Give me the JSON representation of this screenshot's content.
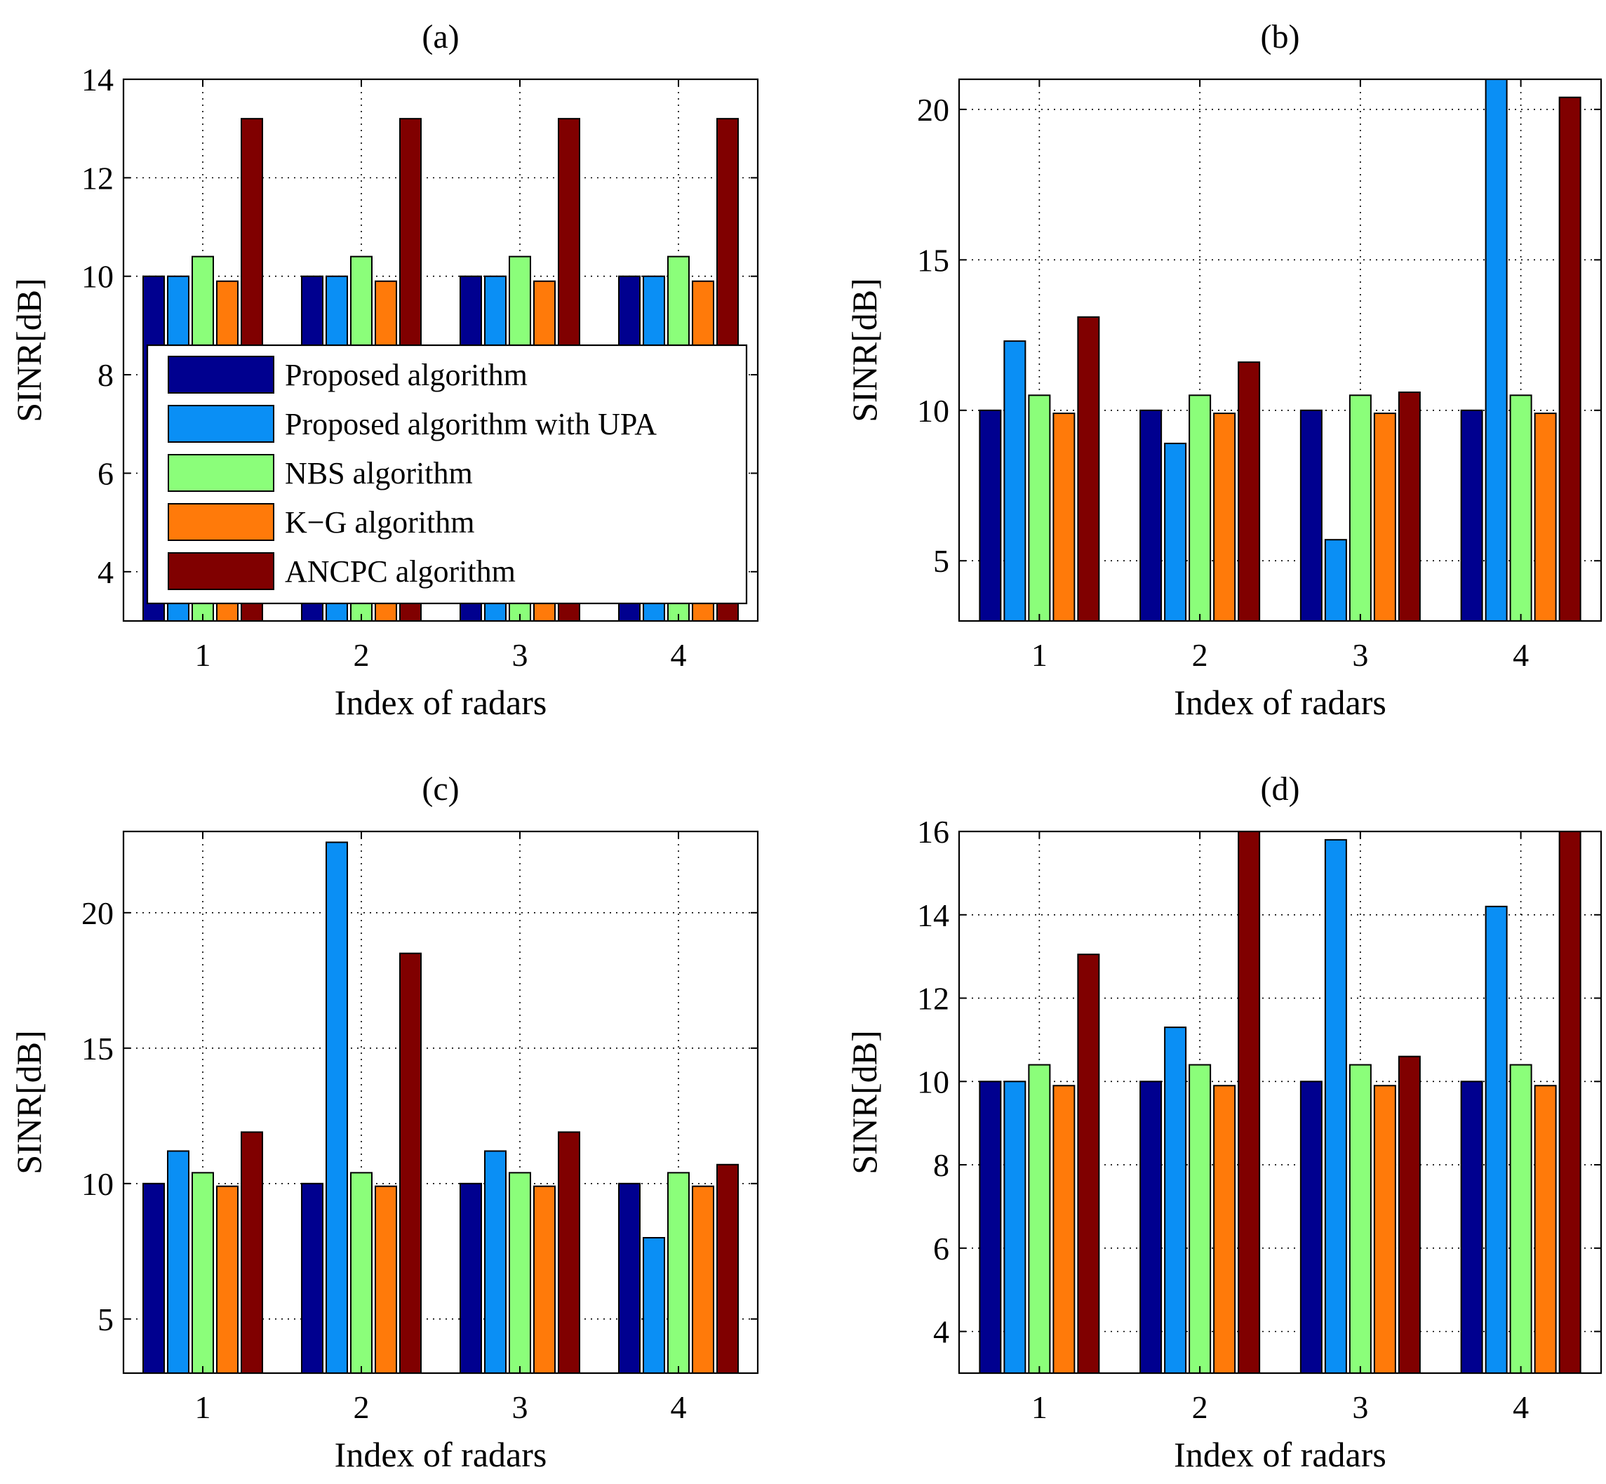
{
  "colors": {
    "Proposed algorithm": "#00008f",
    "Proposed algorithm with UPA": "#0a8ff5",
    "NBS algorithm": "#8bfe7a",
    "K-G algorithm": "#ff7a0a",
    "ANCPC algorithm": "#800000"
  },
  "legend": {
    "items": [
      "Proposed algorithm",
      "Proposed algorithm with UPA",
      "NBS algorithm",
      "K−G algorithm",
      "ANCPC algorithm"
    ]
  },
  "chart_data": [
    {
      "type": "bar",
      "title": "(a)",
      "xlabel": "Index of radars",
      "ylabel": "SINR[dB]",
      "categories": [
        "1",
        "2",
        "3",
        "4"
      ],
      "ylim": [
        3,
        14
      ],
      "yticks": [
        4,
        6,
        8,
        10,
        12,
        14
      ],
      "grid": true,
      "legend_position": "center",
      "series": [
        {
          "name": "Proposed algorithm",
          "values": [
            10,
            10,
            10,
            10
          ]
        },
        {
          "name": "Proposed algorithm with UPA",
          "values": [
            10,
            10,
            10,
            10
          ]
        },
        {
          "name": "NBS algorithm",
          "values": [
            10.4,
            10.4,
            10.4,
            10.4
          ]
        },
        {
          "name": "K-G algorithm",
          "values": [
            9.9,
            9.9,
            9.9,
            9.9
          ]
        },
        {
          "name": "ANCPC algorithm",
          "values": [
            13.2,
            13.2,
            13.2,
            13.2
          ]
        }
      ]
    },
    {
      "type": "bar",
      "title": "(b)",
      "xlabel": "Index of radars",
      "ylabel": "SINR[dB]",
      "categories": [
        "1",
        "2",
        "3",
        "4"
      ],
      "ylim": [
        3,
        21
      ],
      "yticks": [
        5,
        10,
        15,
        20
      ],
      "grid": true,
      "series": [
        {
          "name": "Proposed algorithm",
          "values": [
            10,
            10,
            10,
            10
          ]
        },
        {
          "name": "Proposed algorithm with UPA",
          "values": [
            12.3,
            8.9,
            5.7,
            21
          ]
        },
        {
          "name": "NBS algorithm",
          "values": [
            10.5,
            10.5,
            10.5,
            10.5
          ]
        },
        {
          "name": "K-G algorithm",
          "values": [
            9.9,
            9.9,
            9.9,
            9.9
          ]
        },
        {
          "name": "ANCPC algorithm",
          "values": [
            13.1,
            11.6,
            10.6,
            20.4
          ]
        }
      ]
    },
    {
      "type": "bar",
      "title": "(c)",
      "xlabel": "Index of radars",
      "ylabel": "SINR[dB]",
      "categories": [
        "1",
        "2",
        "3",
        "4"
      ],
      "ylim": [
        3,
        23
      ],
      "yticks": [
        5,
        10,
        15,
        20
      ],
      "grid": true,
      "series": [
        {
          "name": "Proposed algorithm",
          "values": [
            10,
            10,
            10,
            10
          ]
        },
        {
          "name": "Proposed algorithm with UPA",
          "values": [
            11.2,
            22.6,
            11.2,
            8
          ]
        },
        {
          "name": "NBS algorithm",
          "values": [
            10.4,
            10.4,
            10.4,
            10.4
          ]
        },
        {
          "name": "K-G algorithm",
          "values": [
            9.9,
            9.9,
            9.9,
            9.9
          ]
        },
        {
          "name": "ANCPC algorithm",
          "values": [
            11.9,
            18.5,
            11.9,
            10.7
          ]
        }
      ]
    },
    {
      "type": "bar",
      "title": "(d)",
      "xlabel": "Index of radars",
      "ylabel": "SINR[dB]",
      "categories": [
        "1",
        "2",
        "3",
        "4"
      ],
      "ylim": [
        3,
        16
      ],
      "yticks": [
        4,
        6,
        8,
        10,
        12,
        14,
        16
      ],
      "grid": true,
      "series": [
        {
          "name": "Proposed algorithm",
          "values": [
            10,
            10,
            10,
            10
          ]
        },
        {
          "name": "Proposed algorithm with UPA",
          "values": [
            10,
            11.3,
            15.8,
            14.2
          ]
        },
        {
          "name": "NBS algorithm",
          "values": [
            10.4,
            10.4,
            10.4,
            10.4
          ]
        },
        {
          "name": "K-G algorithm",
          "values": [
            9.9,
            9.9,
            9.9,
            9.9
          ]
        },
        {
          "name": "ANCPC algorithm",
          "values": [
            13.05,
            16,
            10.6,
            16
          ]
        }
      ]
    }
  ]
}
